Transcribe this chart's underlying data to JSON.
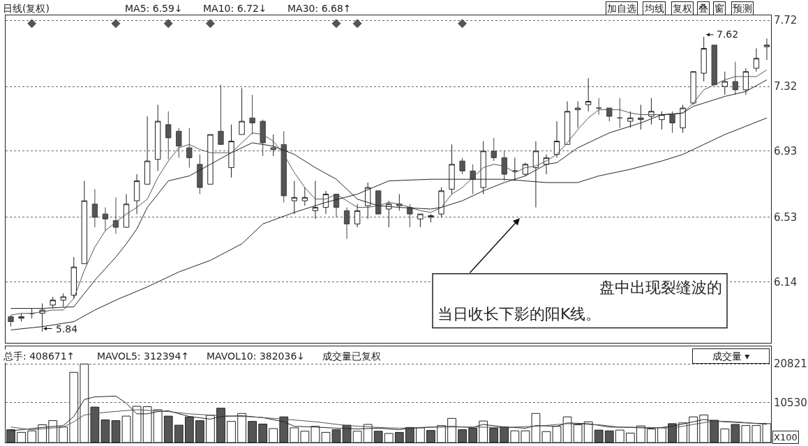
{
  "chart_data": [
    {
      "type": "candlestick",
      "title": "日线(复权)",
      "categories": [
        null,
        null,
        null,
        null,
        null,
        null,
        null,
        null,
        null,
        null,
        null,
        null,
        null,
        null,
        null,
        null,
        null,
        null,
        null,
        null,
        null,
        null,
        null,
        null,
        null,
        null,
        null,
        null,
        null,
        null,
        null,
        null,
        null,
        null,
        null,
        null,
        null,
        null,
        null,
        null,
        null,
        null,
        null,
        null,
        null,
        null,
        null,
        null,
        null,
        null,
        null,
        null,
        null,
        null,
        null,
        null,
        null,
        null,
        null,
        null,
        null,
        null,
        null,
        null,
        null,
        null,
        null,
        null,
        null,
        null,
        null,
        null,
        null
      ],
      "ohlc": [
        [
          5.93,
          5.94,
          5.87,
          5.9
        ],
        [
          5.92,
          5.95,
          5.9,
          5.93
        ],
        [
          5.95,
          5.98,
          5.92,
          5.95
        ],
        [
          5.95,
          6.01,
          5.84,
          5.97
        ],
        [
          6.0,
          6.05,
          5.98,
          6.03
        ],
        [
          6.03,
          6.07,
          5.99,
          6.05
        ],
        [
          6.06,
          6.29,
          6.04,
          6.23
        ],
        [
          6.25,
          6.75,
          6.25,
          6.63
        ],
        [
          6.61,
          6.7,
          6.47,
          6.53
        ],
        [
          6.55,
          6.59,
          6.45,
          6.52
        ],
        [
          6.51,
          6.65,
          6.43,
          6.47
        ],
        [
          6.47,
          6.67,
          6.47,
          6.61
        ],
        [
          6.63,
          6.79,
          6.55,
          6.75
        ],
        [
          6.73,
          7.14,
          6.73,
          6.87
        ],
        [
          6.88,
          7.21,
          6.81,
          7.11
        ],
        [
          7.09,
          7.17,
          6.88,
          7.01
        ],
        [
          7.05,
          7.07,
          6.89,
          6.96
        ],
        [
          6.95,
          7.07,
          6.83,
          6.89
        ],
        [
          6.85,
          6.91,
          6.67,
          6.71
        ],
        [
          6.73,
          7.03,
          6.73,
          7.03
        ],
        [
          7.05,
          7.33,
          6.97,
          6.97
        ],
        [
          6.83,
          7.09,
          6.77,
          6.99
        ],
        [
          7.03,
          7.31,
          7.03,
          7.11
        ],
        [
          7.13,
          7.27,
          7.03,
          7.1
        ],
        [
          7.11,
          7.12,
          6.9,
          6.98
        ],
        [
          6.94,
          7.03,
          6.9,
          6.95
        ],
        [
          6.97,
          7.05,
          6.62,
          6.66
        ],
        [
          6.63,
          6.75,
          6.55,
          6.65
        ],
        [
          6.63,
          6.71,
          6.6,
          6.65
        ],
        [
          6.57,
          6.75,
          6.52,
          6.59
        ],
        [
          6.59,
          6.69,
          6.55,
          6.67
        ],
        [
          6.67,
          6.67,
          6.53,
          6.59
        ],
        [
          6.57,
          6.59,
          6.4,
          6.49
        ],
        [
          6.49,
          6.61,
          6.47,
          6.57
        ],
        [
          6.6,
          6.74,
          6.52,
          6.71
        ],
        [
          6.69,
          6.69,
          6.55,
          6.55
        ],
        [
          6.58,
          6.63,
          6.47,
          6.61
        ],
        [
          6.6,
          6.67,
          6.57,
          6.61
        ],
        [
          6.59,
          6.61,
          6.47,
          6.55
        ],
        [
          6.52,
          6.55,
          6.47,
          6.55
        ],
        [
          6.53,
          6.55,
          6.5,
          6.54
        ],
        [
          6.55,
          6.71,
          6.53,
          6.69
        ],
        [
          6.7,
          6.97,
          6.67,
          6.85
        ],
        [
          6.87,
          6.89,
          6.79,
          6.81
        ],
        [
          6.81,
          6.85,
          6.67,
          6.76
        ],
        [
          6.71,
          6.99,
          6.67,
          6.93
        ],
        [
          6.93,
          7.01,
          6.87,
          6.89
        ],
        [
          6.89,
          6.93,
          6.75,
          6.79
        ],
        [
          6.81,
          6.89,
          6.75,
          6.81
        ],
        [
          6.79,
          6.86,
          6.78,
          6.85
        ],
        [
          6.83,
          6.99,
          6.59,
          6.93
        ],
        [
          6.85,
          6.91,
          6.79,
          6.89
        ],
        [
          6.91,
          7.11,
          6.89,
          6.99
        ],
        [
          6.97,
          7.23,
          6.97,
          7.17
        ],
        [
          7.18,
          7.23,
          7.07,
          7.19
        ],
        [
          7.21,
          7.37,
          7.17,
          7.23
        ],
        [
          7.19,
          7.25,
          7.15,
          7.19
        ],
        [
          7.19,
          7.19,
          7.11,
          7.14
        ],
        [
          7.13,
          7.25,
          7.07,
          7.13
        ],
        [
          7.11,
          7.17,
          7.07,
          7.13
        ],
        [
          7.12,
          7.21,
          7.06,
          7.13
        ],
        [
          7.14,
          7.25,
          7.09,
          7.17
        ],
        [
          7.12,
          7.17,
          7.06,
          7.15
        ],
        [
          7.15,
          7.17,
          7.04,
          7.1
        ],
        [
          7.07,
          7.21,
          7.04,
          7.19
        ],
        [
          7.22,
          7.41,
          7.21,
          7.41
        ],
        [
          7.4,
          7.62,
          7.35,
          7.55
        ],
        [
          7.57,
          7.57,
          7.33,
          7.33
        ],
        [
          7.32,
          7.41,
          7.27,
          7.35
        ],
        [
          7.35,
          7.47,
          7.27,
          7.3
        ],
        [
          7.3,
          7.43,
          7.27,
          7.41
        ],
        [
          7.43,
          7.55,
          7.41,
          7.49
        ],
        [
          7.56,
          7.61,
          7.48,
          7.57
        ]
      ],
      "series": [
        {
          "type": "line",
          "color": "#555555",
          "values": [
            5.94,
            5.95,
            5.95,
            5.96,
            5.97,
            5.97,
            6.04,
            6.21,
            6.35,
            6.45,
            6.5,
            6.55,
            6.59,
            6.64,
            6.77,
            6.87,
            6.95,
            6.97,
            6.94,
            6.92,
            6.92,
            6.92,
            6.98,
            7.04,
            7.03,
            6.99,
            6.91,
            6.8,
            6.71,
            6.64,
            6.64,
            6.67,
            6.63,
            6.59,
            6.59,
            6.6,
            6.62,
            6.61,
            6.59,
            6.57,
            6.56,
            6.59,
            6.67,
            6.71,
            6.77,
            6.83,
            6.85,
            6.84,
            6.8,
            6.83,
            6.84,
            6.87,
            6.91,
            6.98,
            7.06,
            7.13,
            7.18,
            7.18,
            7.18,
            7.16,
            7.15,
            7.15,
            7.15,
            7.15,
            7.16,
            7.22,
            7.3,
            7.33,
            7.36,
            7.38,
            7.38,
            7.38,
            7.42
          ]
        },
        {
          "type": "line",
          "color": "#222222",
          "values": [
            5.98,
            null,
            null,
            5.98,
            null,
            null,
            5.99,
            6.07,
            6.15,
            6.22,
            6.29,
            6.37,
            6.46,
            6.59,
            6.67,
            6.75,
            null,
            6.78,
            null,
            6.85,
            null,
            6.92,
            null,
            6.98,
            null,
            6.96,
            null,
            6.91,
            null,
            6.83,
            null,
            6.76,
            null,
            6.64,
            null,
            6.6,
            null,
            6.59,
            null,
            null,
            6.58,
            6.59,
            null,
            6.63,
            null,
            6.69,
            null,
            6.74,
            null,
            6.78,
            null,
            6.85,
            6.86,
            null,
            6.95,
            null,
            null,
            7.04,
            null,
            null,
            7.1,
            null,
            7.15,
            null,
            7.16,
            7.2,
            7.22,
            null,
            7.26,
            null,
            7.29,
            null,
            7.36
          ]
        },
        {
          "type": "line",
          "color": "#222222",
          "values": [
            5.85,
            null,
            null,
            5.87,
            null,
            null,
            5.9,
            null,
            5.97,
            null,
            6.03,
            null,
            null,
            6.11,
            null,
            null,
            6.2,
            null,
            null,
            6.27,
            null,
            null,
            6.37,
            null,
            6.49,
            null,
            null,
            6.56,
            null,
            null,
            6.62,
            null,
            null,
            6.67,
            null,
            null,
            6.75,
            null,
            null,
            null,
            6.76,
            null,
            null,
            null,
            6.76,
            null,
            null,
            6.76,
            null,
            6.75,
            null,
            6.74,
            null,
            null,
            6.74,
            null,
            6.78,
            null,
            null,
            6.82,
            null,
            null,
            6.87,
            null,
            6.91,
            null,
            6.97,
            null,
            7.03,
            null,
            7.08,
            null,
            7.13
          ]
        },
        {
          "type": "scatter",
          "color": "#555555",
          "marker": "diamond",
          "values": [
            null,
            null,
            7.7,
            null,
            null,
            null,
            null,
            null,
            null,
            null,
            7.7,
            null,
            null,
            null,
            null,
            7.7,
            null,
            null,
            null,
            7.7,
            null,
            null,
            null,
            null,
            null,
            null,
            null,
            null,
            null,
            null,
            null,
            7.7,
            null,
            7.7,
            null,
            null,
            null,
            null,
            null,
            null,
            null,
            null,
            null,
            7.7,
            null,
            null,
            null,
            null,
            null,
            null,
            null,
            null,
            null,
            null,
            null,
            null,
            null,
            null,
            null,
            null,
            null,
            null,
            null,
            null,
            null,
            null,
            null,
            null,
            null,
            null,
            null,
            null,
            null
          ]
        }
      ],
      "ylim": [
        5.77,
        7.75
      ],
      "yticks": [
        6.14,
        6.53,
        6.93,
        7.32,
        7.72
      ],
      "grid": "y",
      "tick_labels": "y",
      "annotations": [
        "MA5: 6.59↓",
        "MA10: 6.72↓",
        "MA30: 6.68↑",
        "加自选",
        "均线",
        "复权",
        "叠",
        "窗",
        "预测",
        "7.62",
        "5.84",
        "盘中出现裂缝波的",
        "当日收长下影的阳K线。"
      ]
    },
    {
      "type": "bar",
      "categories": [
        null,
        null,
        null,
        null,
        null,
        null,
        null,
        null,
        null,
        null,
        null,
        null,
        null,
        null,
        null,
        null,
        null,
        null,
        null,
        null,
        null,
        null,
        null,
        null,
        null,
        null,
        null,
        null,
        null,
        null,
        null,
        null,
        null,
        null,
        null,
        null,
        null,
        null,
        null,
        null,
        null,
        null,
        null,
        null,
        null,
        null,
        null,
        null,
        null,
        null,
        null,
        null,
        null,
        null,
        null,
        null,
        null,
        null,
        null,
        null,
        null,
        null,
        null,
        null,
        null,
        null,
        null,
        null,
        null,
        null,
        null,
        null,
        null
      ],
      "values": [
        3400,
        2700,
        3100,
        4700,
        5800,
        4100,
        18600,
        20800,
        9400,
        6000,
        5800,
        7000,
        9600,
        9500,
        8700,
        7000,
        4600,
        6800,
        5800,
        7200,
        9100,
        5600,
        7700,
        5600,
        4900,
        3700,
        6800,
        3900,
        3000,
        4300,
        2700,
        3400,
        4600,
        3000,
        4800,
        3000,
        2400,
        2700,
        4000,
        3900,
        3200,
        4500,
        6400,
        3400,
        3800,
        5700,
        3800,
        4100,
        3100,
        3100,
        7700,
        2900,
        4300,
        6800,
        4700,
        5500,
        3300,
        3100,
        3300,
        2500,
        4400,
        3600,
        3900,
        5000,
        5200,
        6800,
        7300,
        5900,
        3600,
        4800,
        4500,
        4500,
        5000
      ],
      "colors": [
        "#555555",
        "#ffffff",
        "#ffffff",
        "#ffffff",
        "#ffffff",
        "#ffffff",
        "#ffffff",
        "#ffffff",
        "#555555",
        "#555555",
        "#555555",
        "#ffffff",
        "#ffffff",
        "#ffffff",
        "#ffffff",
        "#555555",
        "#555555",
        "#555555",
        "#555555",
        "#ffffff",
        "#555555",
        "#ffffff",
        "#ffffff",
        "#555555",
        "#555555",
        "#ffffff",
        "#555555",
        "#ffffff",
        "#ffffff",
        "#ffffff",
        "#ffffff",
        "#555555",
        "#555555",
        "#ffffff",
        "#ffffff",
        "#555555",
        "#ffffff",
        "#555555",
        "#555555",
        "#ffffff",
        "#555555",
        "#ffffff",
        "#ffffff",
        "#555555",
        "#555555",
        "#ffffff",
        "#555555",
        "#555555",
        "#ffffff",
        "#ffffff",
        "#ffffff",
        "#ffffff",
        "#ffffff",
        "#ffffff",
        "#ffffff",
        "#ffffff",
        "#555555",
        "#555555",
        "#ffffff",
        "#ffffff",
        "#ffffff",
        "#ffffff",
        "#ffffff",
        "#555555",
        "#ffffff",
        "#ffffff",
        "#ffffff",
        "#555555",
        "#ffffff",
        "#555555",
        "#ffffff",
        "#ffffff",
        "#ffffff"
      ],
      "series": [
        {
          "type": "line",
          "color": "#222222",
          "values": [
            3100,
            null,
            null,
            4000,
            null,
            4500,
            6900,
            11400,
            12100,
            null,
            12300,
            10400,
            7600,
            7600,
            8200,
            8400,
            null,
            6900,
            null,
            6200,
            6900,
            null,
            7100,
            null,
            6600,
            null,
            5500,
            4300,
            null,
            4100,
            null,
            3800,
            null,
            3600,
            null,
            3800,
            null,
            3400,
            3800,
            null,
            null,
            null,
            4300,
            null,
            4000,
            4800,
            null,
            4100,
            null,
            3800,
            4500,
            null,
            4300,
            5200,
            null,
            5000,
            null,
            4100,
            null,
            4000,
            null,
            3800,
            4000,
            4300,
            null,
            5500,
            6100,
            5700,
            5500,
            null,
            5200,
            null,
            5000
          ]
        },
        {
          "type": "line",
          "color": "#555555",
          "values": [
            4100,
            null,
            3400,
            null,
            null,
            4100,
            5500,
            7300,
            null,
            8000,
            null,
            null,
            8700,
            null,
            null,
            8200,
            null,
            7600,
            null,
            null,
            7100,
            null,
            null,
            6800,
            null,
            null,
            6200,
            null,
            null,
            5500,
            null,
            null,
            4500,
            null,
            null,
            4000,
            null,
            3800,
            null,
            null,
            4100,
            null,
            null,
            null,
            4100,
            null,
            null,
            4000,
            null,
            null,
            4300,
            null,
            null,
            5000,
            null,
            null,
            4700,
            null,
            4100,
            null,
            null,
            4000,
            null,
            3800,
            null,
            4800,
            null,
            5700,
            null,
            5500,
            null,
            null,
            4800
          ]
        }
      ],
      "ylim": [
        0,
        25400
      ],
      "yticks": [
        10530,
        20821
      ],
      "grid": "y",
      "tick_labels": "y",
      "annotations": [
        "总手: 408671↑",
        "MAVOL5: 312394↑",
        "MAVOL10: 382036↓",
        "成交量已复权",
        "成交量 ▾",
        "X100"
      ]
    }
  ]
}
